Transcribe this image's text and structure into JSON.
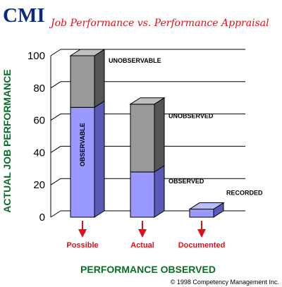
{
  "header": {
    "logo": "CMI",
    "title": "Job Performance vs. Performance Appraisal"
  },
  "chart_data": {
    "type": "bar",
    "stacked": true,
    "categories": [
      "Possible",
      "Actual",
      "Documented"
    ],
    "series": [
      {
        "name": "",
        "segments": [
          "OBSERVABLE",
          "OBSERVED",
          "RECORDED"
        ],
        "values": [
          68,
          28,
          5
        ],
        "color": "#9999ff"
      },
      {
        "name": "",
        "segments": [
          "UNOBSERVABLE",
          "UNOBSERVED",
          ""
        ],
        "values": [
          32,
          42,
          0
        ],
        "color": "#999999"
      }
    ],
    "xlabel": "PERFORMANCE OBSERVED",
    "ylabel": "ACTUAL JOB PERFORMANCE",
    "yticks": [
      0,
      20,
      40,
      60,
      80,
      100
    ],
    "ylim": [
      0,
      100
    ],
    "grid": true
  },
  "footer": {
    "copyright": "© 1998 Competency Management Inc."
  },
  "colors": {
    "logo": "#0b2a7a",
    "title": "#e0101a",
    "category_labels": "#e0101a",
    "arrows": "#e0101a",
    "axis_titles": "#0c6b2a",
    "observed_front": "#9999ff",
    "observed_side": "#5a5ab8",
    "observed_top": "#bbbbff",
    "unobserved_front": "#999999",
    "unobserved_side": "#555555",
    "unobserved_top": "#c0c0c0"
  }
}
